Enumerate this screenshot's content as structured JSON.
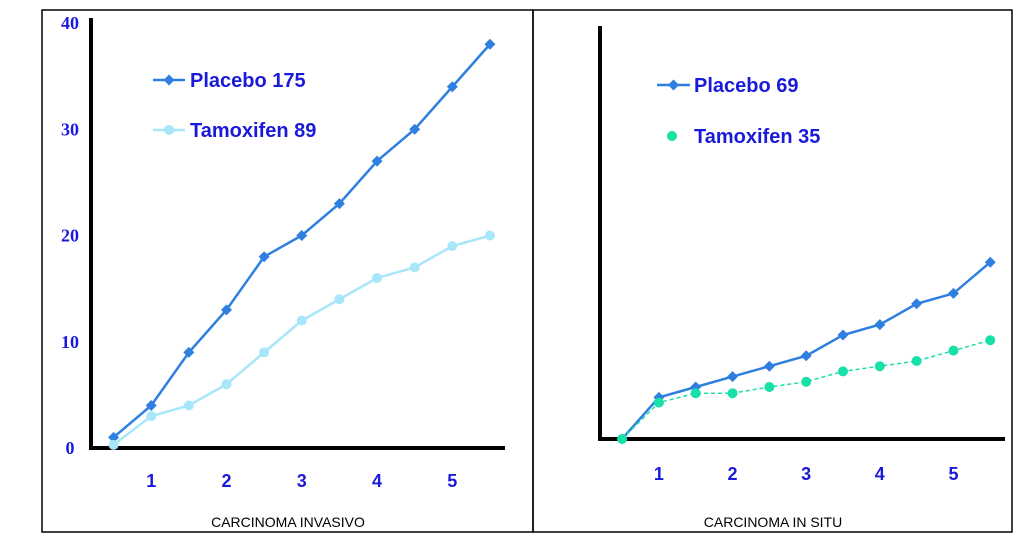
{
  "colors": {
    "panel_border": "#000000",
    "axis": "#000000",
    "label_blue": "#1a1adb",
    "placebo": "#2f7fe0",
    "tamoxifen_left": "#a8e6fa",
    "tamoxifen_right": "#18e0a8"
  },
  "chart_data": [
    {
      "type": "line",
      "title": "CARCINOMA INVASIVO",
      "xlabel": "",
      "ylabel": "",
      "xlim": [
        0.2,
        5.7
      ],
      "ylim": [
        0,
        40
      ],
      "xticks": [
        "1",
        "2",
        "3",
        "4",
        "5"
      ],
      "yticks": [
        "0",
        "10",
        "20",
        "30",
        "40"
      ],
      "grid": false,
      "legend": "top-left",
      "series": [
        {
          "name": "Placebo 175",
          "marker": "diamond",
          "x": [
            0.5,
            1.0,
            1.5,
            2.0,
            2.5,
            3.0,
            3.5,
            4.0,
            4.5,
            5.0,
            5.5
          ],
          "y": [
            1,
            4,
            9,
            13,
            18,
            20,
            23,
            27,
            30,
            34,
            38
          ]
        },
        {
          "name": "Tamoxifen 89",
          "marker": "circle",
          "x": [
            0.5,
            1.0,
            1.5,
            2.0,
            2.5,
            3.0,
            3.5,
            4.0,
            4.5,
            5.0,
            5.5
          ],
          "y": [
            0.3,
            3,
            4,
            6,
            9,
            12,
            14,
            16,
            17,
            19,
            20
          ]
        }
      ]
    },
    {
      "type": "line",
      "title": "CARCINOMA IN SITU",
      "xlabel": "",
      "ylabel": "",
      "xlim": [
        0.2,
        5.7
      ],
      "ylim": [
        0,
        40
      ],
      "xticks": [
        "1",
        "2",
        "3",
        "4",
        "5"
      ],
      "yticks": [],
      "grid": false,
      "legend": "top-left",
      "series": [
        {
          "name": "Placebo 69",
          "marker": "diamond",
          "x": [
            0.5,
            1.0,
            1.5,
            2.0,
            2.5,
            3.0,
            3.5,
            4.0,
            4.5,
            5.0,
            5.5
          ],
          "y": [
            0,
            4,
            5,
            6,
            7,
            8,
            10,
            11,
            13,
            14,
            17
          ]
        },
        {
          "name": "Tamoxifen 35",
          "marker": "circle",
          "dashed": true,
          "x": [
            0.5,
            1.0,
            1.5,
            2.0,
            2.5,
            3.0,
            3.5,
            4.0,
            4.5,
            5.0,
            5.5
          ],
          "y": [
            0,
            3.5,
            4.4,
            4.4,
            5,
            5.5,
            6.5,
            7,
            7.5,
            8.5,
            9.5
          ]
        }
      ]
    }
  ]
}
